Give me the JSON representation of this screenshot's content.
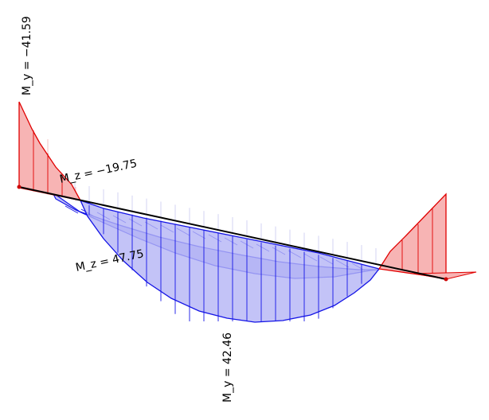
{
  "diagram": {
    "labels": {
      "my_left": "M_y = −41.59",
      "mz_left": "M_z = −19.75",
      "mz_mid": "M_z = 47.75",
      "my_mid": "M_y = 42.46"
    },
    "colors": {
      "background": "#ffffff",
      "beam": "#000000",
      "node": "#cc0000",
      "negative_stroke": "#e00000",
      "negative_fill": "#f7b4b4",
      "positive_stroke": "#1414e6",
      "positive_fill": "#b4b4f5",
      "hatch_guides": "#c8c8f0",
      "hatch_guides_red": "#f0b4b4"
    }
  }
}
